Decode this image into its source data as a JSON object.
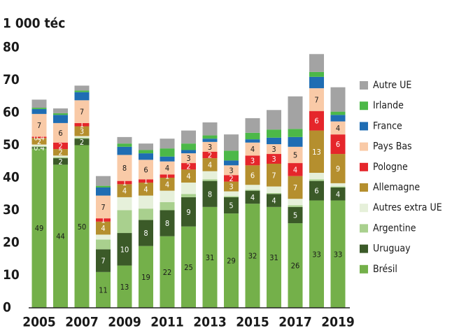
{
  "chart_data": {
    "type": "stacked_bar",
    "title": "1 000 téc",
    "categories": [
      "2005",
      null,
      "2007",
      null,
      "2009",
      null,
      "2011",
      null,
      "2013",
      null,
      "2015",
      null,
      "2017",
      null,
      "2019"
    ],
    "ylim": [
      0,
      80
    ],
    "yticks": [
      0,
      10,
      20,
      30,
      40,
      50,
      60,
      70,
      80
    ],
    "series": [
      {
        "name": "Brésil",
        "color": "#74b04a",
        "show_labels": true,
        "values": [
          49,
          44,
          50,
          11,
          13,
          19,
          22,
          25,
          31,
          29,
          32,
          31,
          26,
          33,
          33
        ]
      },
      {
        "name": "Uruguay",
        "color": "#3b5a28",
        "show_labels": true,
        "values": [
          0.4,
          2,
          2,
          7,
          10,
          8,
          8,
          9,
          8,
          5,
          4,
          4,
          5,
          6,
          4
        ]
      },
      {
        "name": "Argentine",
        "color": "#a9d08e",
        "show_labels": false,
        "values": [
          0.3,
          0.3,
          0.3,
          3,
          7,
          3.5,
          2.5,
          1,
          0.5,
          0.3,
          0.3,
          0.3,
          0.5,
          0.5,
          0.3
        ]
      },
      {
        "name": "Autres extra UE",
        "color": "#e6f0da",
        "show_labels": false,
        "values": [
          0.5,
          0.5,
          0.5,
          1.5,
          4,
          4,
          3.5,
          3.5,
          2.5,
          1.5,
          1.5,
          2,
          2,
          2,
          1
        ]
      },
      {
        "name": "Allemagne",
        "color": "#b58f2e",
        "show_labels": true,
        "values": [
          2,
          2,
          3,
          4,
          4,
          4,
          4,
          4,
          4,
          3,
          6,
          7,
          7,
          13,
          9
        ]
      },
      {
        "name": "Pologne",
        "color": "#e5262b",
        "show_labels": true,
        "values": [
          0.4,
          2,
          1,
          1,
          1,
          1,
          1,
          2,
          2,
          2,
          3,
          3,
          4,
          6,
          6
        ]
      },
      {
        "name": "Pays Bas",
        "color": "#f9caa7",
        "show_labels": true,
        "values": [
          7,
          6,
          7,
          7,
          8,
          6,
          4,
          3,
          3,
          3,
          4,
          3,
          5,
          7,
          4
        ]
      },
      {
        "name": "France",
        "color": "#1f6db3",
        "show_labels": false,
        "values": [
          1.5,
          2.5,
          2.5,
          2.5,
          2.5,
          2,
          1.5,
          1,
          1,
          1.5,
          1,
          2,
          3,
          3.5,
          2
        ]
      },
      {
        "name": "Irlande",
        "color": "#4cb848",
        "show_labels": false,
        "values": [
          0.4,
          0.5,
          0.5,
          0.5,
          1,
          1,
          2.5,
          2,
          1,
          3,
          2,
          2.5,
          2.5,
          1.5,
          1
        ]
      },
      {
        "name": "Autre UE",
        "color": "#a3a3a3",
        "show_labels": false,
        "values": [
          2.5,
          1.5,
          1.5,
          3,
          2,
          2,
          3,
          4,
          4,
          5,
          4.5,
          6,
          10,
          5.5,
          7.5
        ]
      }
    ]
  }
}
